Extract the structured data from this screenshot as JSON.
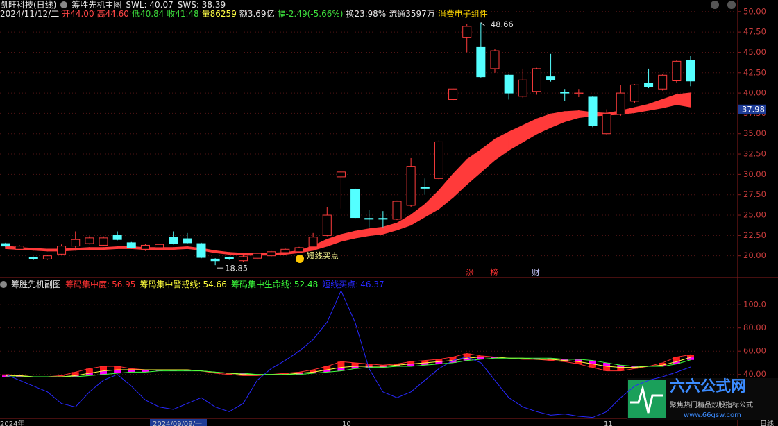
{
  "header": {
    "stock": "凯旺科技(日线)",
    "indicator": "筹胜先机主图",
    "values": [
      "SWL: 40.07",
      "SWS: 38.39"
    ],
    "quote": [
      {
        "text": "2024/11/12/二",
        "color": "#e6e6e6"
      },
      {
        "text": "开44.00",
        "color": "#ff4646"
      },
      {
        "text": "高44.60",
        "color": "#ff4646"
      },
      {
        "text": "低40.84",
        "color": "#3cdc3c"
      },
      {
        "text": "收41.48",
        "color": "#3cdc3c"
      },
      {
        "text": "量86259",
        "color": "#ffff46"
      },
      {
        "text": "额3.69亿",
        "color": "#e6e6e6"
      },
      {
        "text": "幅-2.49(-5.66%)",
        "color": "#3cdc3c"
      },
      {
        "text": "换23.98%",
        "color": "#e6e6e6"
      },
      {
        "text": "流通3597万",
        "color": "#e6e6e6"
      },
      {
        "text": "消费电子组件",
        "color": "#ffd700"
      }
    ]
  },
  "chart_data": [
    {
      "type": "candlestick",
      "up_color": "#ff3c3c",
      "down_color": "#54ffff",
      "open": [
        21.5,
        20.8,
        19.8,
        19.6,
        20.2,
        21.2,
        21.5,
        21.3,
        22.5,
        21.6,
        20.8,
        21.0,
        22.3,
        22.1,
        21.5,
        19.6,
        19.8,
        19.4,
        19.7,
        20.0,
        20.4,
        20.5,
        21.1,
        22.5,
        29.7,
        28.2,
        24.6,
        24.6,
        24.5,
        26.2,
        28.4,
        29.5,
        39.2,
        46.8,
        45.6,
        43.0,
        42.2,
        39.6,
        40.2,
        42.0,
        40.1,
        39.9,
        39.5,
        35.0,
        37.4,
        39.0,
        41.2,
        40.5,
        41.5,
        44.0
      ],
      "high": [
        21.6,
        21.3,
        19.9,
        20.1,
        21.4,
        23.0,
        22.4,
        22.4,
        23.0,
        21.7,
        21.5,
        21.5,
        23.0,
        22.8,
        21.6,
        19.7,
        19.9,
        20.2,
        20.4,
        20.6,
        21.0,
        21.1,
        22.8,
        26.0,
        30.4,
        28.3,
        25.6,
        25.5,
        26.8,
        32.0,
        29.5,
        34.2,
        40.6,
        48.5,
        48.66,
        45.4,
        42.4,
        43.0,
        43.1,
        44.8,
        40.5,
        40.5,
        39.6,
        38.0,
        41.0,
        41.1,
        43.0,
        42.3,
        44.0,
        44.6
      ],
      "low": [
        21.1,
        20.7,
        19.5,
        19.5,
        20.1,
        21.0,
        21.4,
        21.2,
        21.9,
        20.9,
        20.6,
        20.9,
        21.4,
        21.5,
        19.7,
        18.85,
        19.5,
        19.2,
        19.5,
        19.9,
        20.3,
        20.4,
        21.0,
        22.4,
        25.8,
        24.5,
        23.5,
        23.5,
        24.4,
        26.0,
        27.5,
        29.3,
        39.1,
        45.0,
        41.9,
        42.5,
        39.2,
        39.4,
        39.8,
        41.4,
        39.0,
        39.5,
        35.8,
        34.9,
        37.2,
        38.8,
        40.6,
        40.3,
        41.3,
        40.84
      ],
      "close": [
        21.2,
        21.2,
        19.6,
        20.0,
        21.2,
        22.0,
        22.2,
        22.2,
        22.0,
        21.0,
        21.3,
        21.4,
        21.5,
        21.6,
        19.8,
        19.4,
        19.6,
        19.9,
        20.3,
        20.5,
        20.8,
        21.0,
        22.3,
        25.0,
        30.3,
        24.7,
        24.5,
        24.5,
        26.7,
        31.0,
        28.3,
        34.0,
        40.5,
        48.2,
        42.0,
        45.2,
        40.0,
        41.6,
        43.0,
        41.6,
        40.0,
        40.0,
        36.0,
        37.5,
        40.0,
        41.0,
        40.8,
        42.2,
        43.9,
        41.48
      ],
      "band": {
        "color": "#ff3a3a",
        "upper": [
          21.2,
          21.0,
          20.9,
          20.8,
          20.8,
          20.9,
          21.0,
          21.0,
          21.1,
          21.1,
          21.0,
          21.0,
          21.0,
          21.1,
          20.9,
          20.6,
          20.4,
          20.3,
          20.3,
          20.3,
          20.4,
          20.6,
          21.2,
          22.0,
          22.6,
          23.0,
          23.3,
          23.5,
          24.0,
          25.0,
          26.3,
          28.0,
          30.0,
          31.8,
          33.0,
          34.3,
          35.2,
          36.0,
          36.8,
          37.4,
          37.7,
          37.8,
          37.6,
          37.5,
          37.8,
          38.2,
          38.6,
          39.2,
          39.8,
          40.0
        ],
        "lower": [
          20.9,
          20.8,
          20.7,
          20.6,
          20.6,
          20.7,
          20.8,
          20.8,
          20.9,
          20.9,
          20.8,
          20.8,
          20.8,
          20.9,
          20.7,
          20.4,
          20.2,
          20.1,
          20.1,
          20.1,
          20.2,
          20.4,
          20.7,
          21.2,
          21.8,
          22.2,
          22.5,
          22.7,
          23.2,
          23.8,
          24.8,
          25.8,
          27.2,
          28.8,
          30.3,
          31.8,
          33.0,
          34.0,
          35.0,
          35.8,
          36.5,
          37.0,
          37.2,
          37.3,
          37.4,
          37.6,
          37.9,
          38.2,
          38.6,
          38.3
        ]
      },
      "ylim": [
        17.5,
        50.75
      ],
      "yticks": [
        {
          "value": 50,
          "label": "50.00"
        },
        {
          "value": 47.5,
          "label": "47.50"
        },
        {
          "value": 45,
          "label": "45.00"
        },
        {
          "value": 42.5,
          "label": "42.50"
        },
        {
          "value": 40,
          "label": "40.00"
        },
        {
          "value": 37.5,
          "label": "37.50"
        },
        {
          "value": 35,
          "label": "35.00"
        },
        {
          "value": 32.5,
          "label": "32.50"
        },
        {
          "value": 30,
          "label": "30.00"
        },
        {
          "value": 27.5,
          "label": "27.50"
        },
        {
          "value": 25,
          "label": "25.00"
        },
        {
          "value": 22.5,
          "label": "22.50"
        },
        {
          "value": 20,
          "label": "20.00"
        }
      ],
      "price_marker": 37.98,
      "signal_label": "短线买点",
      "event_labels": [
        "涨",
        "榜",
        "财"
      ]
    },
    {
      "type": "line",
      "title": "筹胜先机副图",
      "series": [
        {
          "name": "筹码集中度:",
          "color": "#ff3232",
          "values": [
            40,
            39,
            38,
            38,
            39,
            42,
            45,
            47,
            47,
            45,
            44,
            44,
            44,
            44,
            43,
            41,
            40,
            39,
            39,
            40,
            41,
            42,
            44,
            47,
            51,
            50,
            49,
            48,
            49,
            51,
            52,
            53,
            55,
            58,
            56,
            55,
            54,
            53,
            53,
            52,
            51,
            49,
            46,
            43,
            43,
            45,
            47,
            50,
            55,
            56.95
          ]
        },
        {
          "name": "筹码集中警戒线:",
          "color": "#ffff3c",
          "values": [
            39,
            39,
            38,
            38,
            38,
            39,
            41,
            43,
            44,
            44,
            44,
            44,
            44,
            44,
            43,
            42,
            41,
            40,
            40,
            40,
            40,
            41,
            42,
            44,
            46,
            47,
            47,
            47,
            48,
            49,
            50,
            51,
            52,
            54,
            55,
            55,
            54,
            54,
            53,
            53,
            52,
            51,
            49,
            47,
            46,
            46,
            47,
            48,
            51,
            54.66
          ]
        },
        {
          "name": "筹码集中生命线:",
          "color": "#3cff3c",
          "values": [
            38,
            38,
            38,
            38,
            38,
            38,
            39,
            40,
            41,
            42,
            42,
            43,
            43,
            43,
            43,
            42,
            41,
            41,
            40,
            40,
            40,
            40,
            41,
            42,
            43,
            45,
            46,
            46,
            47,
            47,
            48,
            49,
            50,
            52,
            53,
            54,
            54,
            54,
            54,
            54,
            53,
            53,
            52,
            50,
            48,
            47,
            47,
            47,
            49,
            52.48
          ]
        },
        {
          "name": "短线买点:",
          "color": "#2828ff",
          "values": [
            40,
            35,
            30,
            25,
            15,
            12,
            25,
            35,
            40,
            30,
            18,
            12,
            10,
            15,
            20,
            12,
            8,
            15,
            35,
            45,
            52,
            60,
            70,
            85,
            112,
            85,
            45,
            25,
            20,
            25,
            35,
            45,
            52,
            55,
            50,
            35,
            20,
            12,
            8,
            5,
            6,
            4,
            3,
            8,
            20,
            30,
            35,
            38,
            42,
            46.37
          ]
        }
      ],
      "bar_colors": [
        "#ff1e1e",
        "#ff00ff"
      ],
      "ylim": [
        4,
        121
      ],
      "yticks": [
        {
          "value": 100,
          "label": "100.0"
        },
        {
          "value": 80,
          "label": "80.00"
        },
        {
          "value": 60,
          "label": "60.00"
        },
        {
          "value": 40,
          "label": "40.00"
        }
      ]
    }
  ],
  "footer": {
    "dates": [
      "2024年",
      "2024/09/09/一",
      "10",
      "11",
      "日线"
    ],
    "logo": {
      "name": "六六公式网",
      "slogan": "聚焦热门精品炒股指标公式",
      "url": "www.66gsw.com"
    }
  }
}
